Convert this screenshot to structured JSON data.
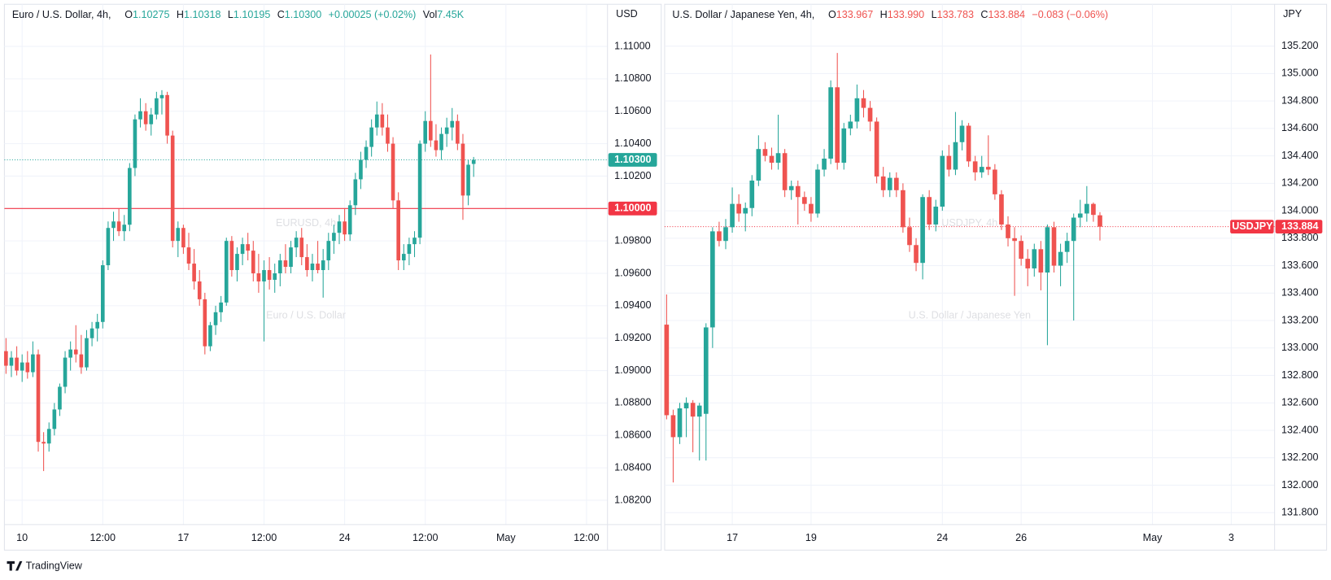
{
  "chart_data": [
    {
      "type": "candlestick",
      "title": "Euro / U.S. Dollar, 4h,",
      "header": [
        {
          "key": "O",
          "text": "1.10275"
        },
        {
          "key": "H",
          "text": "1.10318"
        },
        {
          "key": "L",
          "text": "1.10195"
        },
        {
          "key": "C",
          "text": "1.10300"
        },
        {
          "text": "+0.00025 (+0.02%)"
        },
        {
          "key": "Vol",
          "text": "7.45K"
        }
      ],
      "header_color": "#26a69a",
      "watermark": {
        "symbol": "EURUSD, 4h",
        "description": "Euro / U.S. Dollar"
      },
      "currency": "USD",
      "up_color": "#26a69a",
      "down_color": "#ef5350",
      "grid": true,
      "candles": [
        [
          1.0912,
          1.092,
          1.0898,
          1.0903
        ],
        [
          1.0903,
          1.0912,
          1.0896,
          1.0908
        ],
        [
          1.0908,
          1.0915,
          1.0897,
          1.09
        ],
        [
          1.09,
          1.091,
          1.0893,
          1.0905
        ],
        [
          1.0905,
          1.0912,
          1.0895,
          1.0899
        ],
        [
          1.0899,
          1.0918,
          1.0896,
          1.091
        ],
        [
          1.091,
          1.0913,
          1.085,
          1.0856
        ],
        [
          1.0856,
          1.0862,
          1.0838,
          1.0855
        ],
        [
          1.0855,
          1.0868,
          1.085,
          1.0864
        ],
        [
          1.0864,
          1.088,
          1.086,
          1.0876
        ],
        [
          1.0876,
          1.0892,
          1.0872,
          1.089
        ],
        [
          1.089,
          1.0912,
          1.0886,
          1.0908
        ],
        [
          1.0908,
          1.0918,
          1.09,
          1.0913
        ],
        [
          1.0913,
          1.0928,
          1.0905,
          1.091
        ],
        [
          1.091,
          1.0922,
          1.0898,
          1.0902
        ],
        [
          1.0902,
          1.0925,
          1.09,
          1.092
        ],
        [
          1.092,
          1.093,
          1.0915,
          1.0926
        ],
        [
          1.0926,
          1.0935,
          1.0918,
          1.093
        ],
        [
          1.093,
          1.0968,
          1.0926,
          1.0965
        ],
        [
          1.0965,
          1.0992,
          1.0962,
          1.0988
        ],
        [
          1.0988,
          1.0998,
          1.098,
          1.0992
        ],
        [
          1.0992,
          1.1,
          1.0983,
          1.0986
        ],
        [
          1.0986,
          1.0996,
          1.098,
          1.099
        ],
        [
          1.099,
          1.1028,
          1.0986,
          1.1025
        ],
        [
          1.1025,
          1.1058,
          1.102,
          1.1055
        ],
        [
          1.1055,
          1.1068,
          1.105,
          1.106
        ],
        [
          1.106,
          1.1065,
          1.1048,
          1.1052
        ],
        [
          1.1052,
          1.1062,
          1.1045,
          1.1058
        ],
        [
          1.1058,
          1.1072,
          1.1055,
          1.1068
        ],
        [
          1.1068,
          1.1073,
          1.1058,
          1.107
        ],
        [
          1.107,
          1.1072,
          1.104,
          1.1045
        ],
        [
          1.1045,
          1.1048,
          1.0976,
          1.098
        ],
        [
          1.098,
          1.0992,
          1.097,
          1.0988
        ],
        [
          1.0988,
          1.099,
          1.0972,
          1.0976
        ],
        [
          1.0976,
          1.0985,
          1.0962,
          1.0966
        ],
        [
          1.0966,
          1.0975,
          1.095,
          1.0955
        ],
        [
          1.0955,
          1.0962,
          1.094,
          1.0944
        ],
        [
          1.0944,
          1.0948,
          1.091,
          1.0915
        ],
        [
          1.0915,
          1.093,
          1.0912,
          1.0928
        ],
        [
          1.0928,
          1.094,
          1.0922,
          1.0936
        ],
        [
          1.0936,
          1.0946,
          1.093,
          1.0942
        ],
        [
          1.0942,
          1.0982,
          1.094,
          1.098
        ],
        [
          1.098,
          1.0983,
          1.0958,
          1.0962
        ],
        [
          1.0962,
          1.0976,
          1.0955,
          1.0972
        ],
        [
          1.0972,
          1.0982,
          1.0965,
          1.0978
        ],
        [
          1.0978,
          1.0985,
          1.0968,
          1.0974
        ],
        [
          1.0974,
          1.098,
          1.0955,
          1.096
        ],
        [
          1.096,
          1.0972,
          1.0948,
          1.0955
        ],
        [
          1.0955,
          1.0968,
          1.0918,
          1.0962
        ],
        [
          1.0962,
          1.097,
          1.095,
          1.0956
        ],
        [
          1.0956,
          1.0966,
          1.0948,
          1.096
        ],
        [
          1.096,
          1.0972,
          1.0952,
          1.0968
        ],
        [
          1.0968,
          1.0978,
          1.096,
          1.0964
        ],
        [
          1.0964,
          1.098,
          1.096,
          1.0976
        ],
        [
          1.0976,
          1.0986,
          1.097,
          1.0982
        ],
        [
          1.0982,
          1.0988,
          1.0965,
          1.097
        ],
        [
          1.097,
          1.0978,
          1.0958,
          1.0962
        ],
        [
          1.0962,
          1.0972,
          1.0955,
          1.0966
        ],
        [
          1.0966,
          1.098,
          1.096,
          1.0962
        ],
        [
          1.0962,
          1.0975,
          1.0945,
          1.0968
        ],
        [
          1.0968,
          1.0985,
          1.0962,
          1.098
        ],
        [
          1.098,
          1.099,
          1.0972,
          1.0985
        ],
        [
          1.0985,
          1.0996,
          1.0978,
          1.0992
        ],
        [
          1.0992,
          1.1,
          1.098,
          1.0984
        ],
        [
          1.0984,
          1.1005,
          1.098,
          1.1002
        ],
        [
          1.1002,
          1.1022,
          1.0996,
          1.1018
        ],
        [
          1.1018,
          1.1035,
          1.1012,
          1.103
        ],
        [
          1.103,
          1.1042,
          1.1025,
          1.1038
        ],
        [
          1.1038,
          1.1055,
          1.1032,
          1.105
        ],
        [
          1.105,
          1.1066,
          1.1045,
          1.1058
        ],
        [
          1.1058,
          1.1065,
          1.1045,
          1.105
        ],
        [
          1.105,
          1.1058,
          1.1035,
          1.104
        ],
        [
          1.104,
          1.1044,
          1.1,
          1.1005
        ],
        [
          1.1005,
          1.101,
          1.0962,
          1.0968
        ],
        [
          1.0968,
          1.0978,
          1.0962,
          1.0972
        ],
        [
          1.0972,
          1.0982,
          1.0965,
          1.0978
        ],
        [
          1.0978,
          1.0986,
          1.097,
          1.0982
        ],
        [
          1.0982,
          1.1042,
          1.0978,
          1.104
        ],
        [
          1.104,
          1.106,
          1.1035,
          1.1054
        ],
        [
          1.1054,
          1.1095,
          1.1038,
          1.1042
        ],
        [
          1.1042,
          1.1052,
          1.1032,
          1.1036
        ],
        [
          1.1036,
          1.105,
          1.103,
          1.1046
        ],
        [
          1.1046,
          1.1056,
          1.1038,
          1.105
        ],
        [
          1.105,
          1.1062,
          1.1042,
          1.1054
        ],
        [
          1.1054,
          1.1058,
          1.1036,
          1.104
        ],
        [
          1.104,
          1.1046,
          1.0993,
          1.1008
        ],
        [
          1.1008,
          1.103,
          1.1002,
          1.1027
        ],
        [
          1.10275,
          1.10318,
          1.10195,
          1.103
        ]
      ],
      "xlim": [
        -0.3,
        111.9
      ],
      "xticks": [
        {
          "value": 3,
          "label": "10"
        },
        {
          "value": 18,
          "label": "12:00"
        },
        {
          "value": 33,
          "label": "17"
        },
        {
          "value": 48,
          "label": "12:00"
        },
        {
          "value": 63,
          "label": "24"
        },
        {
          "value": 78,
          "label": "12:00"
        },
        {
          "value": 93,
          "label": "May"
        },
        {
          "value": 108,
          "label": "12:00"
        }
      ],
      "ylim": [
        1.0805,
        1.1126
      ],
      "yticks": [
        {
          "value": 1.082,
          "label": "1.08200"
        },
        {
          "value": 1.084,
          "label": "1.08400"
        },
        {
          "value": 1.086,
          "label": "1.08600"
        },
        {
          "value": 1.088,
          "label": "1.08800"
        },
        {
          "value": 1.09,
          "label": "1.09000"
        },
        {
          "value": 1.092,
          "label": "1.09200"
        },
        {
          "value": 1.094,
          "label": "1.09400"
        },
        {
          "value": 1.096,
          "label": "1.09600"
        },
        {
          "value": 1.098,
          "label": "1.09800"
        },
        {
          "value": 1.1,
          "label": "1.10000"
        },
        {
          "value": 1.102,
          "label": "1.10200"
        },
        {
          "value": 1.104,
          "label": "1.10400"
        },
        {
          "value": 1.106,
          "label": "1.10600"
        },
        {
          "value": 1.108,
          "label": "1.10800"
        },
        {
          "value": 1.11,
          "label": "1.11000"
        }
      ],
      "price_lines": [
        {
          "value": 1.1,
          "label": "1.10000",
          "color": "#f23645",
          "style": "solid"
        },
        {
          "value": 1.103,
          "label": "1.10300",
          "color": "#26a69a",
          "style": "dotted"
        }
      ]
    },
    {
      "type": "candlestick",
      "title": "U.S. Dollar / Japanese Yen, 4h,",
      "header": [
        {
          "key": "O",
          "text": "133.967"
        },
        {
          "key": "H",
          "text": "133.990"
        },
        {
          "key": "L",
          "text": "133.783"
        },
        {
          "key": "C",
          "text": "133.884"
        },
        {
          "text": "−0.083 (−0.06%)"
        }
      ],
      "header_color": "#ef5350",
      "watermark": {
        "symbol": "USDJPY, 4h",
        "description": "U.S. Dollar / Japanese Yen"
      },
      "currency": "JPY",
      "up_color": "#26a69a",
      "down_color": "#ef5350",
      "grid": true,
      "candles": [
        [
          133.17,
          133.39,
          132.48,
          132.51
        ],
        [
          132.51,
          132.55,
          132.02,
          132.35
        ],
        [
          132.35,
          132.6,
          132.3,
          132.56
        ],
        [
          132.56,
          132.64,
          132.35,
          132.6
        ],
        [
          132.6,
          132.62,
          132.24,
          132.5
        ],
        [
          132.5,
          132.6,
          132.18,
          132.58
        ],
        [
          132.52,
          133.18,
          132.18,
          133.15
        ],
        [
          133.15,
          133.88,
          133.0,
          133.85
        ],
        [
          133.85,
          133.92,
          133.74,
          133.78
        ],
        [
          133.78,
          133.94,
          133.72,
          133.88
        ],
        [
          133.88,
          134.17,
          133.84,
          134.05
        ],
        [
          134.05,
          134.12,
          133.92,
          133.98
        ],
        [
          133.98,
          134.06,
          133.85,
          134.02
        ],
        [
          134.02,
          134.26,
          133.96,
          134.22
        ],
        [
          134.22,
          134.55,
          134.18,
          134.45
        ],
        [
          134.45,
          134.5,
          134.36,
          134.4
        ],
        [
          134.4,
          134.46,
          134.3,
          134.35
        ],
        [
          134.35,
          134.7,
          134.3,
          134.42
        ],
        [
          134.42,
          134.45,
          134.1,
          134.15
        ],
        [
          134.15,
          134.22,
          134.08,
          134.18
        ],
        [
          134.18,
          134.22,
          133.9,
          134.1
        ],
        [
          134.1,
          134.14,
          134.0,
          134.05
        ],
        [
          134.05,
          134.1,
          133.92,
          133.98
        ],
        [
          133.98,
          134.34,
          133.95,
          134.3
        ],
        [
          134.3,
          134.45,
          134.25,
          134.38
        ],
        [
          134.38,
          134.95,
          134.34,
          134.9
        ],
        [
          134.9,
          135.15,
          134.3,
          134.35
        ],
        [
          134.35,
          134.64,
          134.3,
          134.6
        ],
        [
          134.6,
          134.7,
          134.55,
          134.65
        ],
        [
          134.65,
          134.92,
          134.6,
          134.82
        ],
        [
          134.82,
          134.88,
          134.68,
          134.75
        ],
        [
          134.75,
          134.8,
          134.58,
          134.65
        ],
        [
          134.65,
          134.68,
          134.2,
          134.25
        ],
        [
          134.25,
          134.32,
          134.1,
          134.15
        ],
        [
          134.15,
          134.28,
          134.1,
          134.24
        ],
        [
          134.24,
          134.28,
          134.1,
          134.15
        ],
        [
          134.15,
          134.2,
          133.84,
          133.88
        ],
        [
          133.88,
          133.95,
          133.7,
          133.75
        ],
        [
          133.75,
          133.8,
          133.56,
          133.62
        ],
        [
          133.62,
          134.12,
          133.5,
          134.1
        ],
        [
          134.1,
          134.15,
          133.86,
          133.9
        ],
        [
          133.9,
          134.08,
          133.85,
          134.03
        ],
        [
          134.03,
          134.44,
          134.0,
          134.4
        ],
        [
          134.4,
          134.48,
          134.25,
          134.3
        ],
        [
          134.3,
          134.72,
          134.26,
          134.5
        ],
        [
          134.5,
          134.66,
          134.44,
          134.62
        ],
        [
          134.62,
          134.64,
          134.32,
          134.36
        ],
        [
          134.36,
          134.4,
          134.22,
          134.28
        ],
        [
          134.28,
          134.4,
          134.24,
          134.32
        ],
        [
          134.32,
          134.55,
          134.26,
          134.3
        ],
        [
          134.3,
          134.34,
          134.08,
          134.12
        ],
        [
          134.12,
          134.15,
          133.86,
          133.9
        ],
        [
          133.9,
          133.96,
          133.74,
          133.8
        ],
        [
          133.8,
          133.88,
          133.38,
          133.78
        ],
        [
          133.78,
          133.82,
          133.6,
          133.65
        ],
        [
          133.65,
          133.72,
          133.45,
          133.58
        ],
        [
          133.58,
          133.76,
          133.52,
          133.72
        ],
        [
          133.72,
          133.78,
          133.42,
          133.55
        ],
        [
          133.55,
          133.9,
          133.02,
          133.88
        ],
        [
          133.88,
          133.92,
          133.55,
          133.6
        ],
        [
          133.6,
          133.76,
          133.45,
          133.7
        ],
        [
          133.7,
          133.84,
          133.62,
          133.78
        ],
        [
          133.78,
          133.98,
          133.2,
          133.95
        ],
        [
          133.95,
          134.08,
          133.88,
          133.98
        ],
        [
          133.98,
          134.18,
          133.92,
          134.05
        ],
        [
          134.05,
          134.06,
          133.92,
          133.97
        ],
        [
          133.967,
          133.99,
          133.783,
          133.884
        ]
      ],
      "xlim": [
        -0.3,
        92.6
      ],
      "xticks": [
        {
          "value": 10,
          "label": "17"
        },
        {
          "value": 22,
          "label": "19"
        },
        {
          "value": 42,
          "label": "24"
        },
        {
          "value": 54,
          "label": "26"
        },
        {
          "value": 74,
          "label": "May"
        },
        {
          "value": 86,
          "label": "3"
        }
      ],
      "ylim": [
        131.713,
        135.505
      ],
      "yticks": [
        {
          "value": 131.8,
          "label": "131.800"
        },
        {
          "value": 132,
          "label": "132.000"
        },
        {
          "value": 132.2,
          "label": "132.200"
        },
        {
          "value": 132.4,
          "label": "132.400"
        },
        {
          "value": 132.6,
          "label": "132.600"
        },
        {
          "value": 132.8,
          "label": "132.800"
        },
        {
          "value": 133,
          "label": "133.000"
        },
        {
          "value": 133.2,
          "label": "133.200"
        },
        {
          "value": 133.4,
          "label": "133.400"
        },
        {
          "value": 133.6,
          "label": "133.600"
        },
        {
          "value": 133.8,
          "label": "133.800"
        },
        {
          "value": 134,
          "label": "134.000"
        },
        {
          "value": 134.2,
          "label": "134.200"
        },
        {
          "value": 134.4,
          "label": "134.400"
        },
        {
          "value": 134.6,
          "label": "134.600"
        },
        {
          "value": 134.8,
          "label": "134.800"
        },
        {
          "value": 135,
          "label": "135.000"
        },
        {
          "value": 135.2,
          "label": "135.200"
        }
      ],
      "price_lines": [
        {
          "value": 133.884,
          "label": "133.884",
          "tag": "USDJPY",
          "color": "#f23645",
          "style": "dotted"
        }
      ]
    }
  ],
  "brand": "TradingView"
}
